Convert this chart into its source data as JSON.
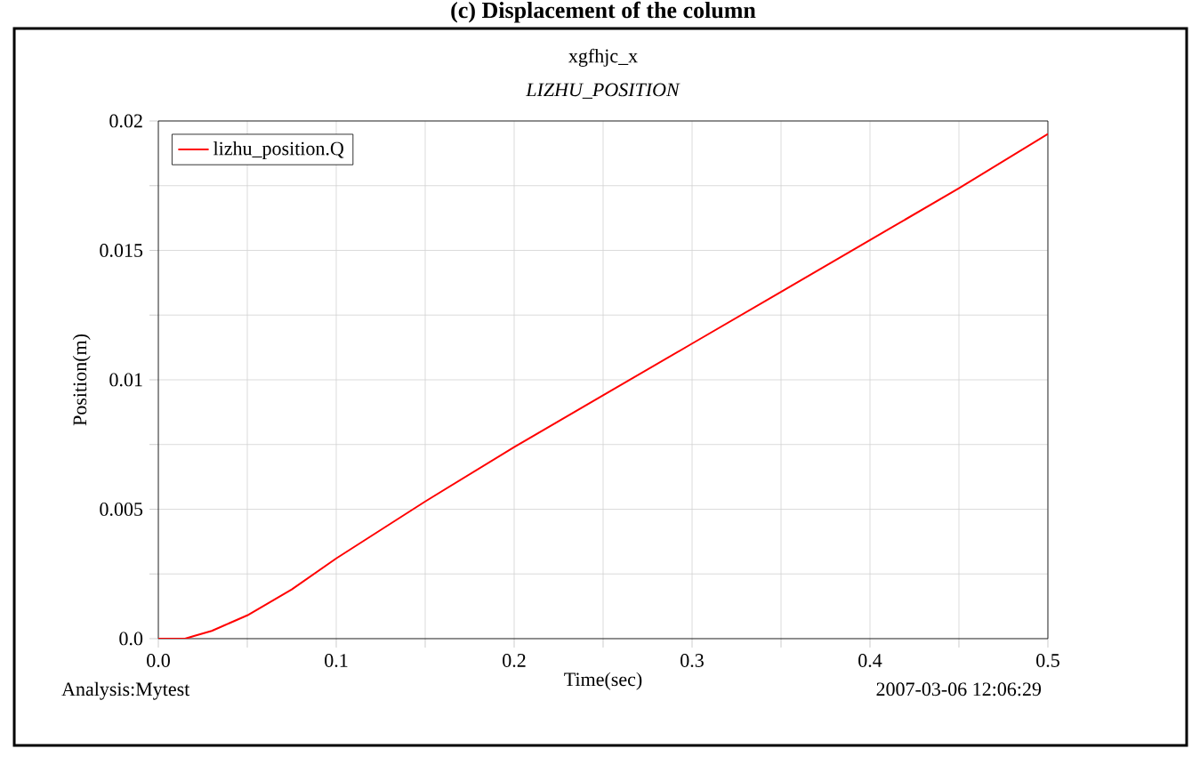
{
  "chart_data": {
    "type": "line",
    "title": "(c) Displacement of the column",
    "subtitle": "xgfhjc_x",
    "legend_title": "*LIZHU_POSITION*",
    "xlabel": "Time(sec)",
    "ylabel": "Position(m)",
    "annotations": [
      "Analysis:Mytest",
      "2007-03-06  12:06:29"
    ],
    "x": [
      0,
      0.005,
      0.01,
      0.015,
      0.02,
      0.03,
      0.04,
      0.05,
      0.075,
      0.1,
      0.15,
      0.2,
      0.25,
      0.3,
      0.35,
      0.4,
      0.45,
      0.5
    ],
    "series": [
      {
        "name": "lizhu_position.Q",
        "color": "#ff0000",
        "values": [
          0,
          0,
          0,
          0,
          0.0001,
          0.0003,
          0.0006,
          0.0009,
          0.0019,
          0.0031,
          0.0053,
          0.0074,
          0.0094,
          0.0114,
          0.0134,
          0.0154,
          0.0174,
          0.0195
        ]
      }
    ],
    "xlim": [
      0,
      0.5
    ],
    "ylim": [
      0,
      0.02
    ],
    "xticks": [
      {
        "value": 0,
        "label": "0.0"
      },
      {
        "value": 0.05,
        "label": null
      },
      0.1,
      {
        "value": 0.15,
        "label": null
      },
      0.2,
      {
        "value": 0.25,
        "label": null
      },
      0.3,
      {
        "value": 0.35,
        "label": null
      },
      0.4,
      {
        "value": 0.45,
        "label": null
      },
      0.5
    ],
    "yticks": [
      {
        "value": 0,
        "label": "0.0"
      },
      {
        "value": 0.0025,
        "label": null
      },
      0.005,
      {
        "value": 0.0075,
        "label": null
      },
      0.01,
      {
        "value": 0.0125,
        "label": null
      },
      0.015,
      {
        "value": 0.0175,
        "label": null
      },
      0.02
    ],
    "grid": true,
    "legend": "top left",
    "marker": "none",
    "line_style": "solid"
  }
}
